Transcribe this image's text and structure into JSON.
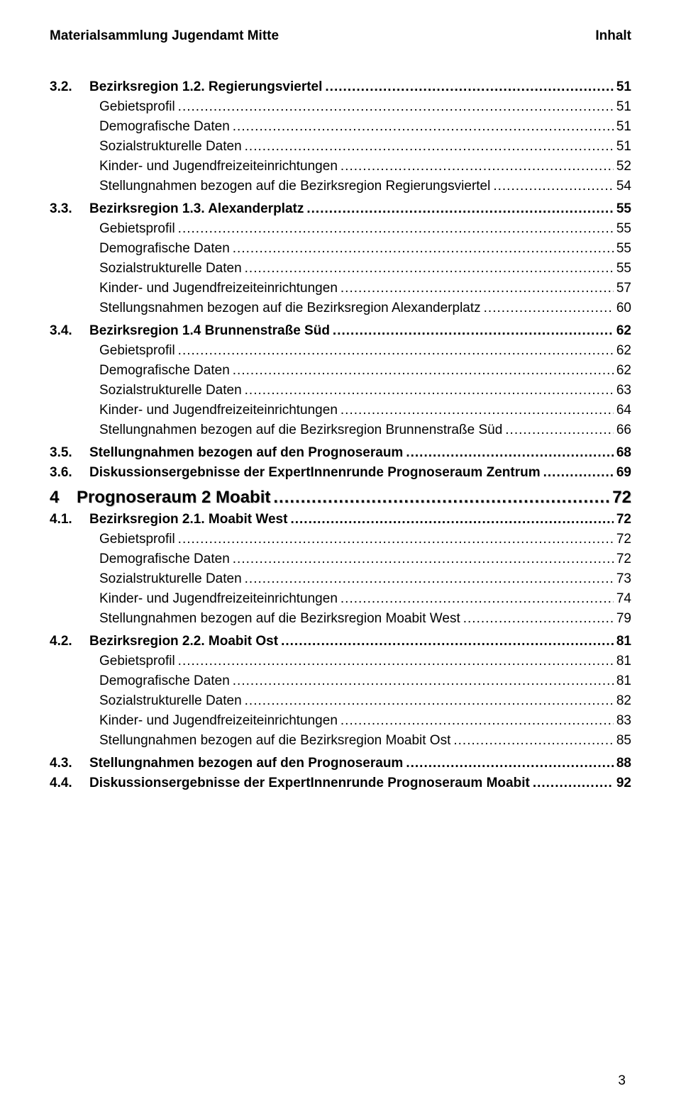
{
  "header": {
    "left": "Materialsammlung Jugendamt Mitte",
    "right": "Inhalt"
  },
  "entries": [
    {
      "level": "2n",
      "bold": true,
      "num": "3.2.",
      "label": "Bezirksregion 1.2. Regierungsviertel",
      "page": "51"
    },
    {
      "level": "3",
      "bold": false,
      "label": "Gebietsprofil",
      "page": "51"
    },
    {
      "level": "3",
      "bold": false,
      "label": "Demografische Daten",
      "page": "51"
    },
    {
      "level": "3",
      "bold": false,
      "label": "Sozialstrukturelle Daten",
      "page": "51"
    },
    {
      "level": "3",
      "bold": false,
      "label": "Kinder- und Jugendfreizeiteinrichtungen",
      "page": "52"
    },
    {
      "level": "3",
      "bold": false,
      "label": "Stellungnahmen bezogen auf die Bezirksregion Regierungsviertel",
      "page": "54"
    },
    {
      "level": "2n",
      "bold": true,
      "num": "3.3.",
      "label": "Bezirksregion 1.3. Alexanderplatz",
      "page": "55",
      "gap": true
    },
    {
      "level": "3",
      "bold": false,
      "label": "Gebietsprofil",
      "page": "55"
    },
    {
      "level": "3",
      "bold": false,
      "label": "Demografische Daten",
      "page": "55"
    },
    {
      "level": "3",
      "bold": false,
      "label": "Sozialstrukturelle Daten",
      "page": "55"
    },
    {
      "level": "3",
      "bold": false,
      "label": "Kinder- und Jugendfreizeiteinrichtungen",
      "page": "57"
    },
    {
      "level": "3",
      "bold": false,
      "label": "Stellungsnahmen bezogen auf die Bezirksregion Alexanderplatz",
      "page": "60"
    },
    {
      "level": "2n",
      "bold": true,
      "num": "3.4.",
      "label": "Bezirksregion 1.4 Brunnenstraße Süd",
      "page": "62",
      "gap": true
    },
    {
      "level": "3",
      "bold": false,
      "label": "Gebietsprofil",
      "page": "62"
    },
    {
      "level": "3",
      "bold": false,
      "label": "Demografische Daten",
      "page": "62"
    },
    {
      "level": "3",
      "bold": false,
      "label": "Sozialstrukturelle Daten",
      "page": "63"
    },
    {
      "level": "3",
      "bold": false,
      "label": "Kinder- und Jugendfreizeiteinrichtungen",
      "page": "64"
    },
    {
      "level": "3",
      "bold": false,
      "label": "Stellungnahmen bezogen auf die Bezirksregion Brunnenstraße Süd",
      "page": "66"
    },
    {
      "level": "2n",
      "bold": true,
      "num": "3.5.",
      "label": "Stellungnahmen bezogen auf den Prognoseraum",
      "page": "68",
      "gap": true
    },
    {
      "level": "2n",
      "bold": true,
      "num": "3.6.",
      "label": "Diskussionsergebnisse der ExpertInnenrunde Prognoseraum Zentrum",
      "page": "69"
    },
    {
      "level": "1",
      "bold": true,
      "shadow": true,
      "num": "4",
      "label": "Prognoseraum 2 Moabit",
      "page": "72",
      "gap": true
    },
    {
      "level": "2n",
      "bold": true,
      "num": "4.1.",
      "label": "Bezirksregion 2.1. Moabit West",
      "page": "72"
    },
    {
      "level": "3",
      "bold": false,
      "label": "Gebietsprofil",
      "page": "72"
    },
    {
      "level": "3",
      "bold": false,
      "label": "Demografische Daten",
      "page": "72"
    },
    {
      "level": "3",
      "bold": false,
      "label": "Sozialstrukturelle Daten",
      "page": "73"
    },
    {
      "level": "3",
      "bold": false,
      "label": "Kinder- und Jugendfreizeiteinrichtungen",
      "page": "74"
    },
    {
      "level": "3",
      "bold": false,
      "label": "Stellungnahmen bezogen auf die Bezirksregion Moabit West",
      "page": "79"
    },
    {
      "level": "2n",
      "bold": true,
      "num": "4.2.",
      "label": "Bezirksregion 2.2. Moabit Ost",
      "page": "81",
      "gap": true
    },
    {
      "level": "3",
      "bold": false,
      "label": "Gebietsprofil",
      "page": "81"
    },
    {
      "level": "3",
      "bold": false,
      "label": "Demografische Daten",
      "page": "81"
    },
    {
      "level": "3",
      "bold": false,
      "label": "Sozialstrukturelle Daten",
      "page": "82"
    },
    {
      "level": "3",
      "bold": false,
      "label": "Kinder- und Jugendfreizeiteinrichtungen",
      "page": "83"
    },
    {
      "level": "3",
      "bold": false,
      "label": "Stellungnahmen bezogen auf die Bezirksregion Moabit Ost",
      "page": "85"
    },
    {
      "level": "2n",
      "bold": true,
      "num": "4.3.",
      "label": "Stellungnahmen bezogen auf den Prognoseraum",
      "page": "88",
      "gap": true
    },
    {
      "level": "2n",
      "bold": true,
      "num": "4.4.",
      "label": "Diskussionsergebnisse der ExpertInnenrunde Prognoseraum Moabit",
      "page": "92"
    }
  ],
  "footer": {
    "page_number": "3"
  }
}
